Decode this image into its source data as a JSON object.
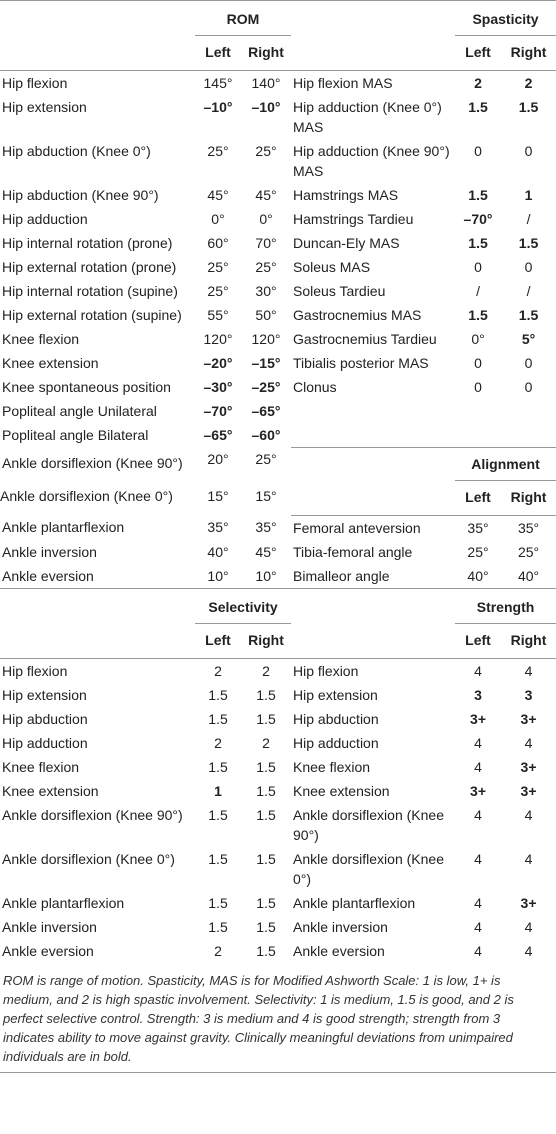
{
  "rom": {
    "title": "ROM",
    "columns": [
      "Left",
      "Right"
    ],
    "rows": [
      [
        "Hip flexion",
        "145°",
        "140°"
      ],
      [
        "Hip extension",
        {
          "text": "–10°",
          "bold": true
        },
        {
          "text": "–10°",
          "bold": true
        }
      ],
      [
        "Hip abduction (Knee 0°)",
        "25°",
        "25°"
      ],
      [
        "Hip abduction (Knee 90°)",
        "45°",
        "45°"
      ],
      [
        "Hip adduction",
        "0°",
        "0°"
      ],
      [
        "Hip internal rotation (prone)",
        "60°",
        "70°"
      ],
      [
        "Hip external rotation (prone)",
        "25°",
        "25°"
      ],
      [
        "Hip internal rotation (supine)",
        "25°",
        "30°"
      ],
      [
        "Hip external rotation (supine)",
        "55°",
        "50°"
      ],
      [
        "Knee flexion",
        "120°",
        "120°"
      ],
      [
        "Knee extension",
        {
          "text": "–20°",
          "bold": true
        },
        {
          "text": "–15°",
          "bold": true
        }
      ],
      [
        "Knee spontaneous position",
        {
          "text": "–30°",
          "bold": true
        },
        {
          "text": "–25°",
          "bold": true
        }
      ],
      [
        "Popliteal angle Unilateral",
        {
          "text": "–70°",
          "bold": true
        },
        {
          "text": "–65°",
          "bold": true
        }
      ],
      [
        "Popliteal angle Bilateral",
        {
          "text": "–65°",
          "bold": true
        },
        {
          "text": "–60°",
          "bold": true
        }
      ],
      [
        "Ankle dorsiflexion (Knee 90°)",
        "20°",
        "25°"
      ],
      [
        "Ankle dorsiflexion (Knee 0°)",
        "15°",
        "15°"
      ],
      [
        "Ankle plantarflexion",
        "35°",
        "35°"
      ],
      [
        "Ankle inversion",
        "40°",
        "45°"
      ],
      [
        "Ankle eversion",
        "10°",
        "10°"
      ]
    ]
  },
  "spasticity": {
    "title": "Spasticity",
    "columns": [
      "Left",
      "Right"
    ],
    "rows": [
      [
        "Hip flexion MAS",
        {
          "text": "2",
          "bold": true
        },
        {
          "text": "2",
          "bold": true
        }
      ],
      [
        "Hip adduction (Knee 0°) MAS",
        {
          "text": "1.5",
          "bold": true
        },
        {
          "text": "1.5",
          "bold": true
        }
      ],
      [
        "Hip adduction (Knee 90°) MAS",
        "0",
        "0"
      ],
      [
        "Hamstrings MAS",
        {
          "text": "1.5",
          "bold": true
        },
        {
          "text": "1",
          "bold": true
        }
      ],
      [
        "Hamstrings Tardieu",
        {
          "text": "–70°",
          "bold": true
        },
        "/"
      ],
      [
        "Duncan-Ely MAS",
        {
          "text": "1.5",
          "bold": true
        },
        {
          "text": "1.5",
          "bold": true
        }
      ],
      [
        "Soleus MAS",
        "0",
        "0"
      ],
      [
        "Soleus Tardieu",
        "/",
        "/"
      ],
      [
        "Gastrocnemius MAS",
        {
          "text": "1.5",
          "bold": true
        },
        {
          "text": "1.5",
          "bold": true
        }
      ],
      [
        "Gastrocnemius Tardieu",
        "0°",
        {
          "text": "5°",
          "bold": true
        }
      ],
      [
        "Tibialis posterior MAS",
        "0",
        "0"
      ],
      [
        "Clonus",
        "0",
        "0"
      ]
    ]
  },
  "alignment": {
    "title": "Alignment",
    "columns": [
      "Left",
      "Right"
    ],
    "rows": [
      [
        "Femoral anteversion",
        "35°",
        "35°"
      ],
      [
        "Tibia-femoral angle",
        "25°",
        "25°"
      ],
      [
        "Bimalleor angle",
        "40°",
        "40°"
      ]
    ]
  },
  "selectivity": {
    "title": "Selectivity",
    "columns": [
      "Left",
      "Right"
    ],
    "rows": [
      [
        "Hip flexion",
        "2",
        "2"
      ],
      [
        "Hip extension",
        "1.5",
        "1.5"
      ],
      [
        "Hip abduction",
        "1.5",
        "1.5"
      ],
      [
        "Hip adduction",
        "2",
        "2"
      ],
      [
        "Knee flexion",
        "1.5",
        "1.5"
      ],
      [
        "Knee extension",
        {
          "text": "1",
          "bold": true
        },
        "1.5"
      ],
      [
        "Ankle dorsiflexion (Knee 90°)",
        "1.5",
        "1.5"
      ],
      [
        "Ankle dorsiflexion (Knee 0°)",
        "1.5",
        "1.5"
      ],
      [
        "Ankle plantarflexion",
        "1.5",
        "1.5"
      ],
      [
        "Ankle inversion",
        "1.5",
        "1.5"
      ],
      [
        "Ankle eversion",
        "2",
        "1.5"
      ]
    ]
  },
  "strength": {
    "title": "Strength",
    "columns": [
      "Left",
      "Right"
    ],
    "rows": [
      [
        "Hip flexion",
        "4",
        "4"
      ],
      [
        "Hip extension",
        {
          "text": "3",
          "bold": true
        },
        {
          "text": "3",
          "bold": true
        }
      ],
      [
        "Hip abduction",
        {
          "text": "3+",
          "bold": true
        },
        {
          "text": "3+",
          "bold": true
        }
      ],
      [
        "Hip adduction",
        "4",
        "4"
      ],
      [
        "Knee flexion",
        "4",
        {
          "text": "3+",
          "bold": true
        }
      ],
      [
        "Knee extension",
        {
          "text": "3+",
          "bold": true
        },
        {
          "text": "3+",
          "bold": true
        }
      ],
      [
        "Ankle dorsiflexion (Knee 90°)",
        "4",
        "4"
      ],
      [
        "Ankle dorsiflexion (Knee 0°)",
        "4",
        "4"
      ],
      [
        "Ankle plantarflexion",
        "4",
        {
          "text": "3+",
          "bold": true
        }
      ],
      [
        "Ankle inversion",
        "4",
        "4"
      ],
      [
        "Ankle eversion",
        "4",
        "4"
      ]
    ]
  },
  "footnote": "ROM is range of motion. Spasticity, MAS is for Modified Ashworth Scale: 1 is low, 1+ is medium, and 2 is high spastic involvement. Selectivity: 1 is medium, 1.5 is good, and 2 is perfect selective control. Strength: 3 is medium and 4 is good strength; strength from 3 indicates ability to move against gravity. Clinically meaningful deviations from unimpaired individuals are in bold."
}
